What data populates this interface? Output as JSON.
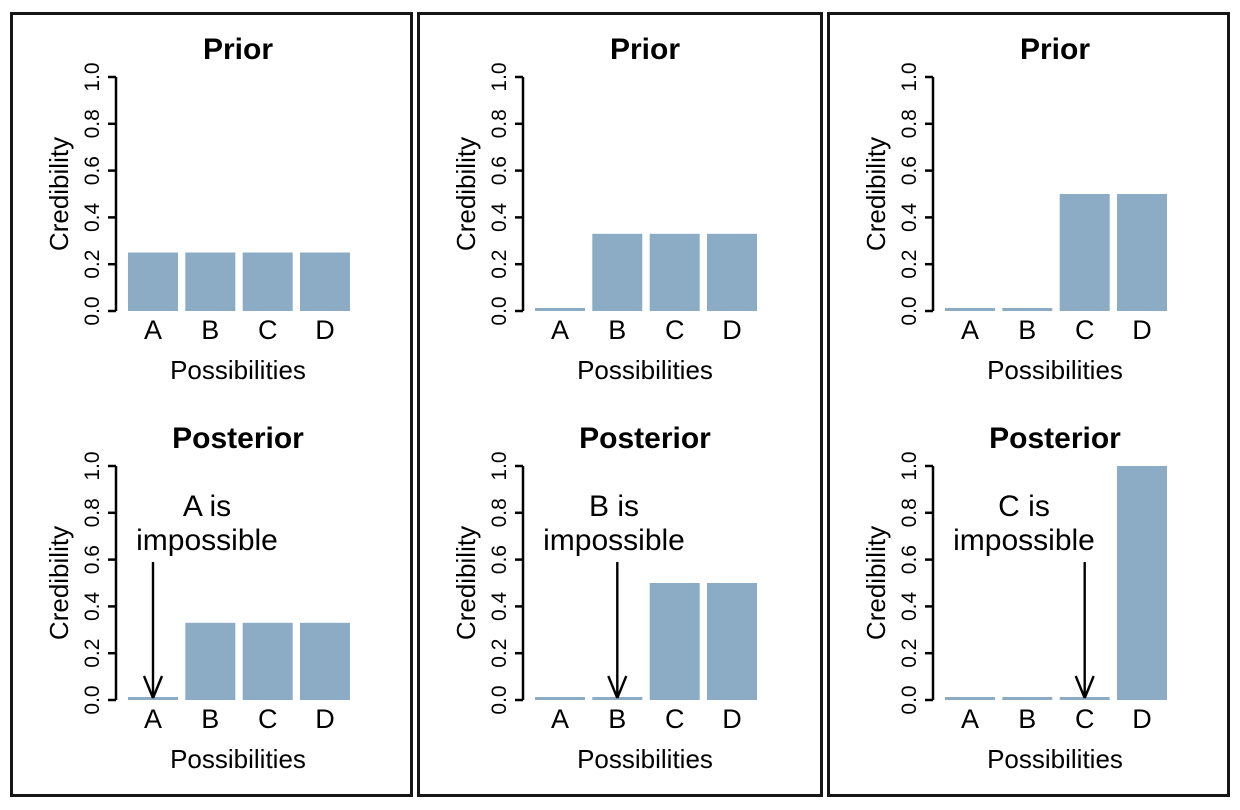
{
  "figure": {
    "bar_color": "#8BACC4",
    "line_color": "#000000",
    "panel_border_color": "#161616",
    "background_color": "#ffffff",
    "columns": 3,
    "rows_per_column": [
      "Prior",
      "Posterior"
    ]
  },
  "chart_data": [
    {
      "type": "bar",
      "panel": 1,
      "row": "prior",
      "title": "Prior",
      "categories": [
        "A",
        "B",
        "C",
        "D"
      ],
      "values": [
        0.25,
        0.25,
        0.25,
        0.25
      ],
      "xlabel": "Possibilities",
      "ylabel": "Credibility",
      "ylim": [
        0,
        1
      ],
      "ytick_labels": [
        "0.0",
        "0.2",
        "0.4",
        "0.6",
        "0.8",
        "1.0"
      ],
      "grid": false,
      "annotation": null
    },
    {
      "type": "bar",
      "panel": 1,
      "row": "posterior",
      "title": "Posterior",
      "categories": [
        "A",
        "B",
        "C",
        "D"
      ],
      "values": [
        0.01,
        0.33,
        0.33,
        0.33
      ],
      "xlabel": "Possibilities",
      "ylabel": "Credibility",
      "ylim": [
        0,
        1
      ],
      "ytick_labels": [
        "0.0",
        "0.2",
        "0.4",
        "0.6",
        "0.8",
        "1.0"
      ],
      "grid": false,
      "annotation": {
        "lines": [
          "A is",
          "impossible"
        ],
        "arrow_target": "A",
        "arrow_from_y": 0.6,
        "arrow_to_y": 0.01
      }
    },
    {
      "type": "bar",
      "panel": 2,
      "row": "prior",
      "title": "Prior",
      "categories": [
        "A",
        "B",
        "C",
        "D"
      ],
      "values": [
        0.01,
        0.33,
        0.33,
        0.33
      ],
      "xlabel": "Possibilities",
      "ylabel": "Credibility",
      "ylim": [
        0,
        1
      ],
      "ytick_labels": [
        "0.0",
        "0.2",
        "0.4",
        "0.6",
        "0.8",
        "1.0"
      ],
      "grid": false,
      "annotation": null
    },
    {
      "type": "bar",
      "panel": 2,
      "row": "posterior",
      "title": "Posterior",
      "categories": [
        "A",
        "B",
        "C",
        "D"
      ],
      "values": [
        0.01,
        0.01,
        0.5,
        0.5
      ],
      "xlabel": "Possibilities",
      "ylabel": "Credibility",
      "ylim": [
        0,
        1
      ],
      "ytick_labels": [
        "0.0",
        "0.2",
        "0.4",
        "0.6",
        "0.8",
        "1.0"
      ],
      "grid": false,
      "annotation": {
        "lines": [
          "B is",
          "impossible"
        ],
        "arrow_target": "B",
        "arrow_from_y": 0.6,
        "arrow_to_y": 0.01
      }
    },
    {
      "type": "bar",
      "panel": 3,
      "row": "prior",
      "title": "Prior",
      "categories": [
        "A",
        "B",
        "C",
        "D"
      ],
      "values": [
        0.01,
        0.01,
        0.5,
        0.5
      ],
      "xlabel": "Possibilities",
      "ylabel": "Credibility",
      "ylim": [
        0,
        1
      ],
      "ytick_labels": [
        "0.0",
        "0.2",
        "0.4",
        "0.6",
        "0.8",
        "1.0"
      ],
      "grid": false,
      "annotation": null
    },
    {
      "type": "bar",
      "panel": 3,
      "row": "posterior",
      "title": "Posterior",
      "categories": [
        "A",
        "B",
        "C",
        "D"
      ],
      "values": [
        0.01,
        0.01,
        0.01,
        1.0
      ],
      "xlabel": "Possibilities",
      "ylabel": "Credibility",
      "ylim": [
        0,
        1
      ],
      "ytick_labels": [
        "0.0",
        "0.2",
        "0.4",
        "0.6",
        "0.8",
        "1.0"
      ],
      "grid": false,
      "annotation": {
        "lines": [
          "C is",
          "impossible"
        ],
        "arrow_target": "C",
        "arrow_from_y": 0.6,
        "arrow_to_y": 0.01
      }
    }
  ]
}
